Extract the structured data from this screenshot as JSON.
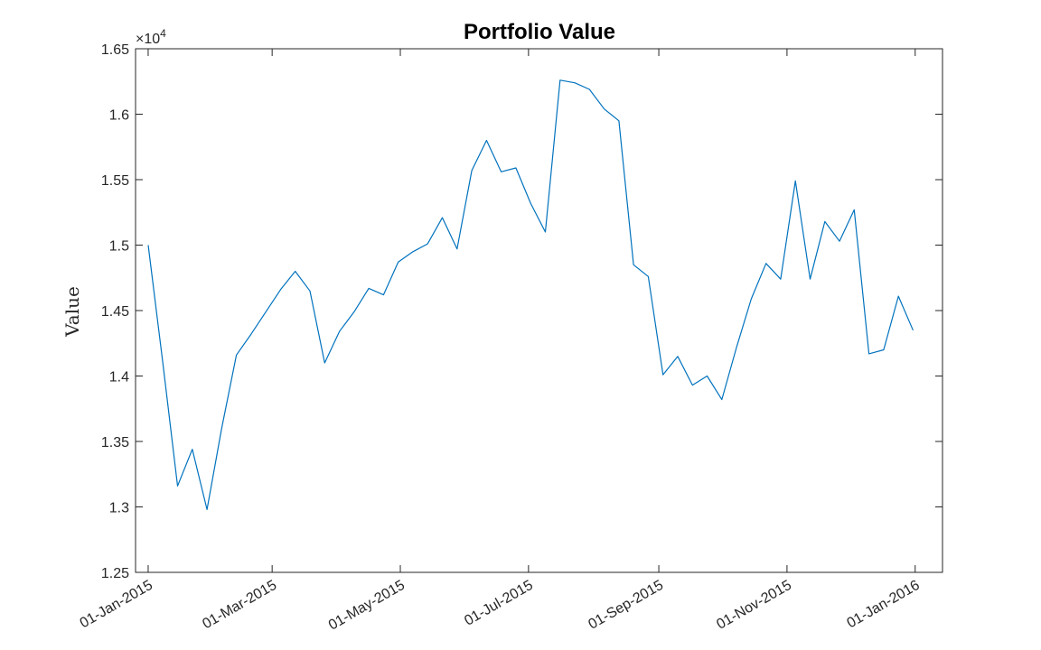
{
  "chart_data": {
    "type": "line",
    "title": "Portfolio Value",
    "ylabel": "Value",
    "xlabel": "",
    "y_exponent_label": "×10",
    "y_exponent_power": "4",
    "ylim": [
      12500,
      16500
    ],
    "xlim": [
      "2014-12-26",
      "2016-01-14"
    ],
    "y_ticks": [
      12500,
      13000,
      13500,
      14000,
      14500,
      15000,
      15500,
      16000,
      16500
    ],
    "y_tick_labels": [
      "1.25",
      "1.3",
      "1.35",
      "1.4",
      "1.45",
      "1.5",
      "1.55",
      "1.6",
      "1.65"
    ],
    "x_ticks": [
      "2015-01-01",
      "2015-03-01",
      "2015-05-01",
      "2015-07-01",
      "2015-09-01",
      "2015-11-01",
      "2016-01-01"
    ],
    "x_tick_labels": [
      "01-Jan-2015",
      "01-Mar-2015",
      "01-May-2015",
      "01-Jul-2015",
      "01-Sep-2015",
      "01-Nov-2015",
      "01-Jan-2016"
    ],
    "grid": false,
    "line_color": "#0072BD",
    "series": [
      {
        "x": [
          "2015-01-01",
          "2015-01-08",
          "2015-01-15",
          "2015-01-22",
          "2015-01-29",
          "2015-02-05",
          "2015-02-12",
          "2015-02-19",
          "2015-02-26",
          "2015-03-05",
          "2015-03-12",
          "2015-03-19",
          "2015-03-26",
          "2015-04-02",
          "2015-04-09",
          "2015-04-16",
          "2015-04-23",
          "2015-04-30",
          "2015-05-07",
          "2015-05-14",
          "2015-05-21",
          "2015-05-28",
          "2015-06-04",
          "2015-06-11",
          "2015-06-18",
          "2015-06-25",
          "2015-07-02",
          "2015-07-09",
          "2015-07-16",
          "2015-07-23",
          "2015-07-30",
          "2015-08-06",
          "2015-08-13",
          "2015-08-20",
          "2015-08-27",
          "2015-09-03",
          "2015-09-10",
          "2015-09-17",
          "2015-09-24",
          "2015-10-01",
          "2015-10-08",
          "2015-10-15",
          "2015-10-22",
          "2015-10-29",
          "2015-11-05",
          "2015-11-12",
          "2015-11-19",
          "2015-11-26",
          "2015-12-03",
          "2015-12-10",
          "2015-12-17",
          "2015-12-24",
          "2015-12-31"
        ],
        "y": [
          15000,
          14100,
          13160,
          13440,
          12980,
          13600,
          14160,
          14320,
          14490,
          14660,
          14800,
          14650,
          14100,
          14340,
          14490,
          14670,
          14620,
          14870,
          14950,
          15010,
          15210,
          14970,
          15570,
          15800,
          15560,
          15590,
          15320,
          15100,
          16260,
          16240,
          16190,
          16040,
          15950,
          14850,
          14760,
          14010,
          14150,
          13930,
          14000,
          13820,
          14220,
          14590,
          14860,
          14740,
          15490,
          14740,
          15180,
          15030,
          15270,
          14170,
          14200,
          14610,
          14350
        ]
      }
    ]
  }
}
